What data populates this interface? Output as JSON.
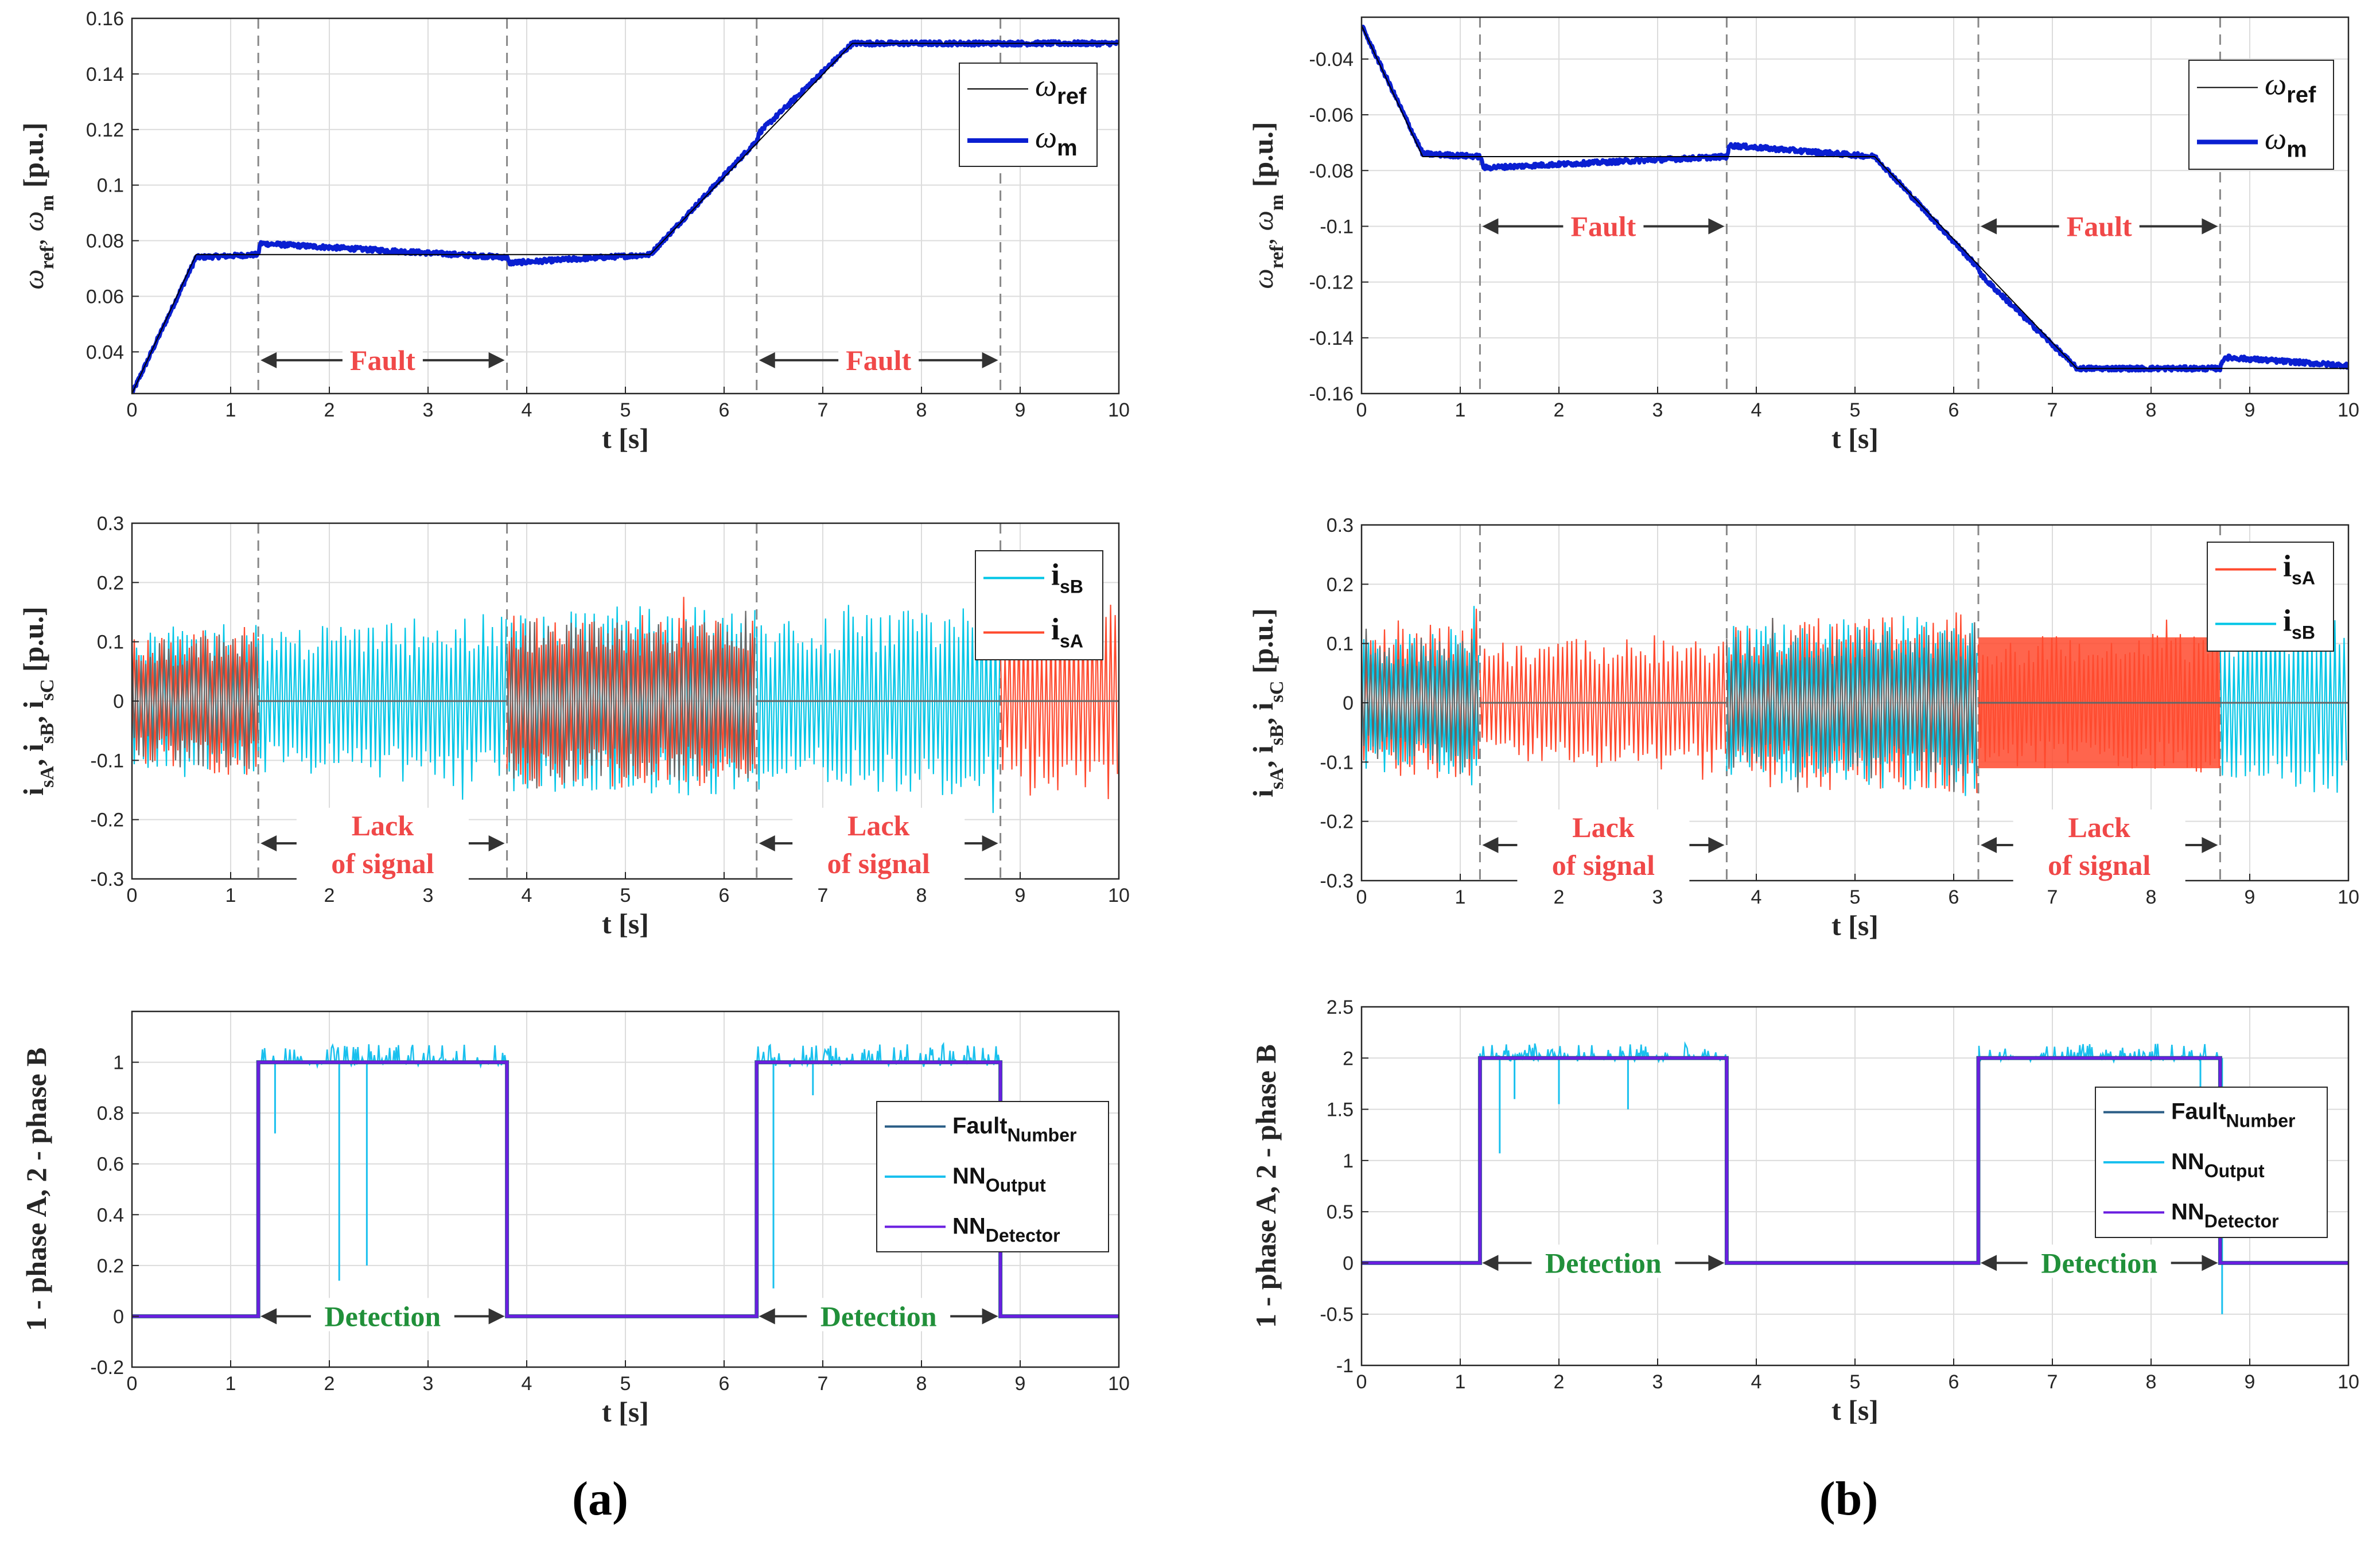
{
  "figure": {
    "panel_labels": [
      "(a)",
      "(b)"
    ],
    "colors": {
      "speed_ref": "#000000",
      "speed_meas": "#0a1fd1",
      "isA": "#ff4a2e",
      "isB": "#00c5e6",
      "isC_gray": "#666666",
      "fault_number": "#2a5d86",
      "nn_output": "#19c0ee",
      "nn_detector": "#6a1ee0",
      "annot_red": "#f04848",
      "annot_green": "#21903a",
      "arrow": "#333333",
      "grid": "#dcdcdc",
      "dashed": "#888888"
    }
  },
  "chart_data": [
    {
      "id": "a_speed",
      "type": "line",
      "title": "",
      "xlabel": "t [s]",
      "ylabel": {
        "main": "ω",
        "subs": [
          "ref",
          ", ω",
          "m"
        ],
        "unit": " [p.u.]"
      },
      "xlim": [
        0,
        10
      ],
      "ylim": [
        0.025,
        0.16
      ],
      "xticks": [
        "0",
        "1",
        "2",
        "3",
        "4",
        "5",
        "6",
        "7",
        "8",
        "9",
        "10"
      ],
      "yticks": [
        "0.04",
        "0.06",
        "0.08",
        "0.1",
        "0.12",
        "0.14",
        "0.16"
      ],
      "ytick_values": [
        0.04,
        0.06,
        0.08,
        0.1,
        0.12,
        0.14,
        0.16
      ],
      "fault_lines": [
        1.28,
        3.8,
        6.33,
        8.8
      ],
      "series": [
        {
          "name": "ω_ref",
          "x": [
            0,
            0.65,
            5.25,
            7.3,
            10
          ],
          "y": [
            0.025,
            0.075,
            0.075,
            0.151,
            0.151
          ]
        },
        {
          "name": "ω_m",
          "x": [
            0,
            0.65,
            1.28,
            1.3,
            3.8,
            3.82,
            5.25,
            6.33,
            6.36,
            7.3,
            10
          ],
          "y": [
            0.025,
            0.074,
            0.075,
            0.079,
            0.074,
            0.072,
            0.075,
            0.116,
            0.119,
            0.151,
            0.151
          ],
          "noise": 0.0008
        }
      ],
      "legend": [
        {
          "sym": "ω",
          "sub": "ref",
          "style": "thin"
        },
        {
          "sym": "ω",
          "sub": "m",
          "style": "thick"
        }
      ],
      "annotations": [
        {
          "text": "Fault",
          "x0": 1.28,
          "x1": 3.8,
          "y": 0.037
        },
        {
          "text": "Fault",
          "x0": 6.33,
          "x1": 8.8,
          "y": 0.037
        }
      ]
    },
    {
      "id": "a_current",
      "type": "line",
      "xlabel": "t [s]",
      "ylabel": {
        "main": "i",
        "subs": [
          "sA",
          ", i",
          "sB",
          ", i",
          "sC"
        ],
        "unit": " [p.u.]"
      },
      "xlim": [
        0,
        10
      ],
      "ylim": [
        -0.3,
        0.3
      ],
      "xticks": [
        "0",
        "1",
        "2",
        "3",
        "4",
        "5",
        "6",
        "7",
        "8",
        "9",
        "10"
      ],
      "yticks": [
        "-0.3",
        "-0.2",
        "-0.1",
        "0",
        "0.1",
        "0.2",
        "0.3"
      ],
      "ytick_values": [
        -0.3,
        -0.2,
        -0.1,
        0,
        0.1,
        0.2,
        0.3
      ],
      "fault_lines": [
        1.28,
        3.8,
        6.33,
        8.8
      ],
      "segments": [
        {
          "x0": 0,
          "x1": 1.28,
          "pattern": "mix_red_top",
          "amp0": 0.12,
          "amp1": 0.14
        },
        {
          "x0": 1.28,
          "x1": 3.8,
          "pattern": "blue",
          "amp0": 0.12,
          "amp1": 0.15
        },
        {
          "x0": 3.8,
          "x1": 6.33,
          "pattern": "mix_red_top",
          "amp0": 0.16,
          "amp1": 0.16
        },
        {
          "x0": 6.33,
          "x1": 8.8,
          "pattern": "blue",
          "amp0": 0.13,
          "amp1": 0.17
        },
        {
          "x0": 8.8,
          "x1": 10,
          "pattern": "red",
          "amp0": 0.14,
          "amp1": 0.17
        }
      ],
      "legend": [
        {
          "sym": "i",
          "sub": "sB",
          "color_key": "isB"
        },
        {
          "sym": "i",
          "sub": "sA",
          "color_key": "isA"
        }
      ],
      "annotations": [
        {
          "line1": "Lack",
          "line2": "of signal",
          "x0": 1.28,
          "x1": 3.8
        },
        {
          "line1": "Lack",
          "line2": "of signal",
          "x0": 6.33,
          "x1": 8.8
        }
      ]
    },
    {
      "id": "a_detect",
      "type": "line",
      "xlabel": "t [s]",
      "ylabel": {
        "main": "1 - phase A, 2 - phase B"
      },
      "xlim": [
        0,
        10
      ],
      "ylim": [
        -0.2,
        1.2
      ],
      "xticks": [
        "0",
        "1",
        "2",
        "3",
        "4",
        "5",
        "6",
        "7",
        "8",
        "9",
        "10"
      ],
      "yticks": [
        "-0.2",
        "0",
        "0.2",
        "0.4",
        "0.6",
        "0.8",
        "1"
      ],
      "ytick_values": [
        -0.2,
        0,
        0.2,
        0.4,
        0.6,
        0.8,
        1
      ],
      "steps": [
        [
          0,
          0
        ],
        [
          1.28,
          1
        ],
        [
          3.8,
          0
        ],
        [
          6.33,
          1
        ],
        [
          8.8,
          0
        ],
        [
          10,
          0
        ]
      ],
      "level": 1,
      "spikes": [
        [
          1.45,
          0.72
        ],
        [
          2.1,
          0.14
        ],
        [
          2.38,
          0.2
        ],
        [
          6.5,
          0.11
        ],
        [
          6.9,
          0.87
        ]
      ],
      "legend": [
        {
          "sym": "Fault",
          "sub": "Number",
          "color_key": "fault_number"
        },
        {
          "sym": "NN",
          "sub": "Output",
          "color_key": "nn_output"
        },
        {
          "sym": "NN",
          "sub": "Detector",
          "color_key": "nn_detector"
        }
      ],
      "annotations": [
        {
          "text": "Detection",
          "x0": 1.28,
          "x1": 3.8,
          "y": 0.0
        },
        {
          "text": "Detection",
          "x0": 6.33,
          "x1": 8.8,
          "y": 0.0
        }
      ]
    },
    {
      "id": "b_speed",
      "type": "line",
      "xlabel": "t [s]",
      "ylabel": {
        "main": "ω",
        "subs": [
          "ref",
          ", ω",
          "m"
        ],
        "unit": " [p.u.]"
      },
      "xlim": [
        0,
        10
      ],
      "ylim": [
        -0.16,
        -0.025
      ],
      "xticks": [
        "0",
        "1",
        "2",
        "3",
        "4",
        "5",
        "6",
        "7",
        "8",
        "9",
        "10"
      ],
      "yticks": [
        "-0.16",
        "-0.14",
        "-0.12",
        "-0.1",
        "-0.08",
        "-0.06",
        "-0.04"
      ],
      "ytick_values": [
        -0.16,
        -0.14,
        -0.12,
        -0.1,
        -0.08,
        -0.06,
        -0.04
      ],
      "fault_lines": [
        1.2,
        3.7,
        6.25,
        8.7
      ],
      "series": [
        {
          "name": "ω_ref",
          "x": [
            0,
            0.62,
            5.2,
            7.25,
            10
          ],
          "y": [
            -0.028,
            -0.075,
            -0.075,
            -0.151,
            -0.151
          ]
        },
        {
          "name": "ω_m",
          "x": [
            0,
            0.62,
            1.2,
            1.24,
            3.7,
            3.73,
            5.2,
            6.25,
            6.29,
            7.25,
            8.7,
            8.74,
            10
          ],
          "y": [
            -0.028,
            -0.074,
            -0.075,
            -0.079,
            -0.075,
            -0.071,
            -0.075,
            -0.115,
            -0.118,
            -0.151,
            -0.151,
            -0.147,
            -0.15
          ],
          "noise": 0.0008
        }
      ],
      "legend": [
        {
          "sym": "ω",
          "sub": "ref",
          "style": "thin"
        },
        {
          "sym": "ω",
          "sub": "m",
          "style": "thick"
        }
      ],
      "annotations": [
        {
          "text": "Fault",
          "x0": 1.2,
          "x1": 3.7,
          "y": -0.1
        },
        {
          "text": "Fault",
          "x0": 6.25,
          "x1": 8.7,
          "y": -0.1
        }
      ]
    },
    {
      "id": "b_current",
      "type": "line",
      "xlabel": "t [s]",
      "ylabel": {
        "main": "i",
        "subs": [
          "sA",
          ", i",
          "sB",
          ", i",
          "sC"
        ],
        "unit": " [p.u.]"
      },
      "xlim": [
        0,
        10
      ],
      "ylim": [
        -0.3,
        0.3
      ],
      "xticks": [
        "0",
        "1",
        "2",
        "3",
        "4",
        "5",
        "6",
        "7",
        "8",
        "9",
        "10"
      ],
      "yticks": [
        "-0.3",
        "-0.2",
        "-0.1",
        "0",
        "0.1",
        "0.2",
        "0.3"
      ],
      "ytick_values": [
        -0.3,
        -0.2,
        -0.1,
        0,
        0.1,
        0.2,
        0.3
      ],
      "fault_lines": [
        1.2,
        3.7,
        6.25,
        8.7
      ],
      "segments": [
        {
          "x0": 0,
          "x1": 1.2,
          "pattern": "mix_blue_top",
          "amp0": 0.12,
          "amp1": 0.14
        },
        {
          "x0": 1.2,
          "x1": 3.7,
          "pattern": "red",
          "amp0": 0.1,
          "amp1": 0.12
        },
        {
          "x0": 3.7,
          "x1": 6.25,
          "pattern": "mix_blue_top",
          "amp0": 0.14,
          "amp1": 0.16
        },
        {
          "x0": 6.25,
          "x1": 8.7,
          "pattern": "red_solid",
          "amp0": 0.11,
          "amp1": 0.12
        },
        {
          "x0": 8.7,
          "x1": 10,
          "pattern": "blue",
          "amp0": 0.13,
          "amp1": 0.16
        }
      ],
      "legend": [
        {
          "sym": "i",
          "sub": "sA",
          "color_key": "isA"
        },
        {
          "sym": "i",
          "sub": "sB",
          "color_key": "isB"
        }
      ],
      "annotations": [
        {
          "line1": "Lack",
          "line2": "of signal",
          "x0": 1.2,
          "x1": 3.7
        },
        {
          "line1": "Lack",
          "line2": "of signal",
          "x0": 6.25,
          "x1": 8.7
        }
      ]
    },
    {
      "id": "b_detect",
      "type": "line",
      "xlabel": "t [s]",
      "ylabel": {
        "main": "1 - phase A, 2 - phase B"
      },
      "xlim": [
        0,
        10
      ],
      "ylim": [
        -1,
        2.5
      ],
      "xticks": [
        "0",
        "1",
        "2",
        "3",
        "4",
        "5",
        "6",
        "7",
        "8",
        "9",
        "10"
      ],
      "yticks": [
        "-1",
        "-0.5",
        "0",
        "0.5",
        "1",
        "1.5",
        "2",
        "2.5"
      ],
      "ytick_values": [
        -1,
        -0.5,
        0,
        0.5,
        1,
        1.5,
        2,
        2.5
      ],
      "steps": [
        [
          0,
          0
        ],
        [
          1.2,
          2
        ],
        [
          3.7,
          0
        ],
        [
          6.25,
          2
        ],
        [
          8.7,
          0
        ],
        [
          10,
          0
        ]
      ],
      "level": 2,
      "spikes": [
        [
          1.4,
          1.07
        ],
        [
          1.55,
          1.6
        ],
        [
          2.0,
          1.55
        ],
        [
          2.7,
          1.5
        ],
        [
          8.5,
          1.7
        ],
        [
          8.72,
          -0.5
        ]
      ],
      "legend": [
        {
          "sym": "Fault",
          "sub": "Number",
          "color_key": "fault_number"
        },
        {
          "sym": "NN",
          "sub": "Output",
          "color_key": "nn_output"
        },
        {
          "sym": "NN",
          "sub": "Detector",
          "color_key": "nn_detector"
        }
      ],
      "annotations": [
        {
          "text": "Detection",
          "x0": 1.2,
          "x1": 3.7,
          "y": 0.0
        },
        {
          "text": "Detection",
          "x0": 6.25,
          "x1": 8.7,
          "y": 0.0
        }
      ]
    }
  ]
}
